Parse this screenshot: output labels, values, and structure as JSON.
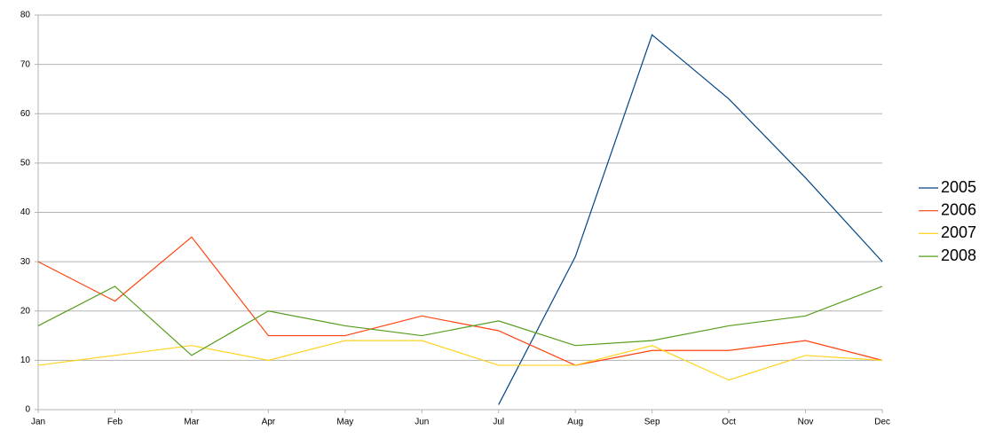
{
  "chart_data": {
    "type": "line",
    "categories": [
      "Jan",
      "Feb",
      "Mar",
      "Apr",
      "May",
      "Jun",
      "Jul",
      "Aug",
      "Sep",
      "Oct",
      "Nov",
      "Dec"
    ],
    "series": [
      {
        "name": "2005",
        "color": "#004586",
        "values": [
          null,
          null,
          null,
          null,
          null,
          null,
          1,
          31,
          76,
          63,
          47,
          30
        ]
      },
      {
        "name": "2006",
        "color": "#ff420e",
        "values": [
          30,
          22,
          35,
          15,
          15,
          19,
          16,
          9,
          12,
          12,
          14,
          10
        ]
      },
      {
        "name": "2007",
        "color": "#ffd320",
        "values": [
          9,
          11,
          13,
          10,
          14,
          14,
          9,
          9,
          13,
          6,
          11,
          10
        ]
      },
      {
        "name": "2008",
        "color": "#579d1c",
        "values": [
          17,
          25,
          11,
          20,
          17,
          15,
          18,
          13,
          14,
          17,
          19,
          25
        ]
      }
    ],
    "ylim": [
      0,
      80
    ],
    "yticks": [
      0,
      10,
      20,
      30,
      40,
      50,
      60,
      70,
      80
    ],
    "grid": true,
    "legend": "right"
  }
}
